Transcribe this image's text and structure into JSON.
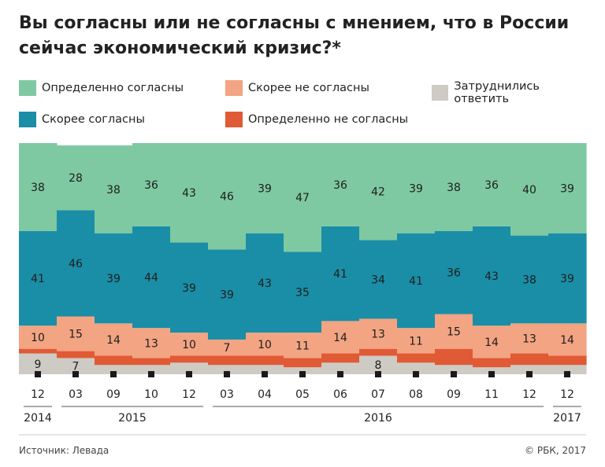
{
  "title_line1": "Вы согласны или не согласны с мнением, что в России",
  "title_line2": "сейчас экономический кризис?*",
  "legend": [
    {
      "label": "Определенно согласны",
      "color": "#7ec9a1"
    },
    {
      "label": "Скорее не согласны",
      "color": "#f3a482"
    },
    {
      "label": "Затруднились ответить",
      "color": "#cdcbc4"
    },
    {
      "label": "Скорее согласны",
      "color": "#1a8ea6"
    },
    {
      "label": "Определенно не согласны",
      "color": "#e05a35"
    }
  ],
  "source": "Источник: Левада",
  "copyright": "© РБК, 2017",
  "chart_data": {
    "type": "bar",
    "stacked": true,
    "categories": [
      "12",
      "03",
      "09",
      "10",
      "12",
      "03",
      "04",
      "05",
      "06",
      "07",
      "08",
      "09",
      "11",
      "12",
      "12"
    ],
    "years": [
      {
        "label": "2014",
        "from": 0,
        "to": 0
      },
      {
        "label": "2015",
        "from": 1,
        "to": 4
      },
      {
        "label": "2016",
        "from": 5,
        "to": 13
      },
      {
        "label": "2017",
        "from": 14,
        "to": 14
      }
    ],
    "series": [
      {
        "name": "Затруднились ответить",
        "color": "#cdcbc4",
        "values": [
          9,
          7,
          4,
          4,
          5,
          4,
          4,
          3,
          5,
          8,
          5,
          4,
          3,
          4,
          4
        ]
      },
      {
        "name": "Определенно не согласны",
        "color": "#e05a35",
        "values": [
          2,
          3,
          4,
          3,
          3,
          4,
          4,
          4,
          4,
          3,
          4,
          7,
          4,
          5,
          4
        ]
      },
      {
        "name": "Скорее не согласны",
        "color": "#f3a482",
        "values": [
          10,
          15,
          14,
          13,
          10,
          7,
          10,
          11,
          14,
          13,
          11,
          15,
          14,
          13,
          14
        ]
      },
      {
        "name": "Скорее согласны",
        "color": "#1a8ea6",
        "values": [
          41,
          46,
          39,
          44,
          39,
          39,
          43,
          35,
          41,
          34,
          41,
          36,
          43,
          38,
          39
        ]
      },
      {
        "name": "Определенно согласны",
        "color": "#7ec9a1",
        "values": [
          38,
          28,
          38,
          36,
          43,
          46,
          39,
          47,
          36,
          42,
          39,
          38,
          36,
          40,
          39
        ]
      }
    ],
    "data_labels": {
      "Затруднились ответить": [
        9,
        7,
        null,
        null,
        null,
        null,
        null,
        null,
        null,
        8,
        null,
        null,
        null,
        null,
        null
      ],
      "Определенно не согласны": [
        null,
        null,
        null,
        null,
        null,
        null,
        null,
        null,
        null,
        null,
        null,
        null,
        null,
        null,
        null
      ],
      "Скорее не согласны": [
        10,
        15,
        14,
        13,
        10,
        7,
        10,
        11,
        14,
        13,
        11,
        15,
        14,
        13,
        14
      ],
      "Скорее согласны": [
        41,
        46,
        39,
        44,
        39,
        39,
        43,
        35,
        41,
        34,
        41,
        36,
        43,
        38,
        39
      ],
      "Определенно согласны": [
        38,
        28,
        38,
        36,
        43,
        46,
        39,
        47,
        36,
        42,
        39,
        38,
        36,
        40,
        39
      ]
    },
    "ylim": [
      0,
      100
    ]
  }
}
